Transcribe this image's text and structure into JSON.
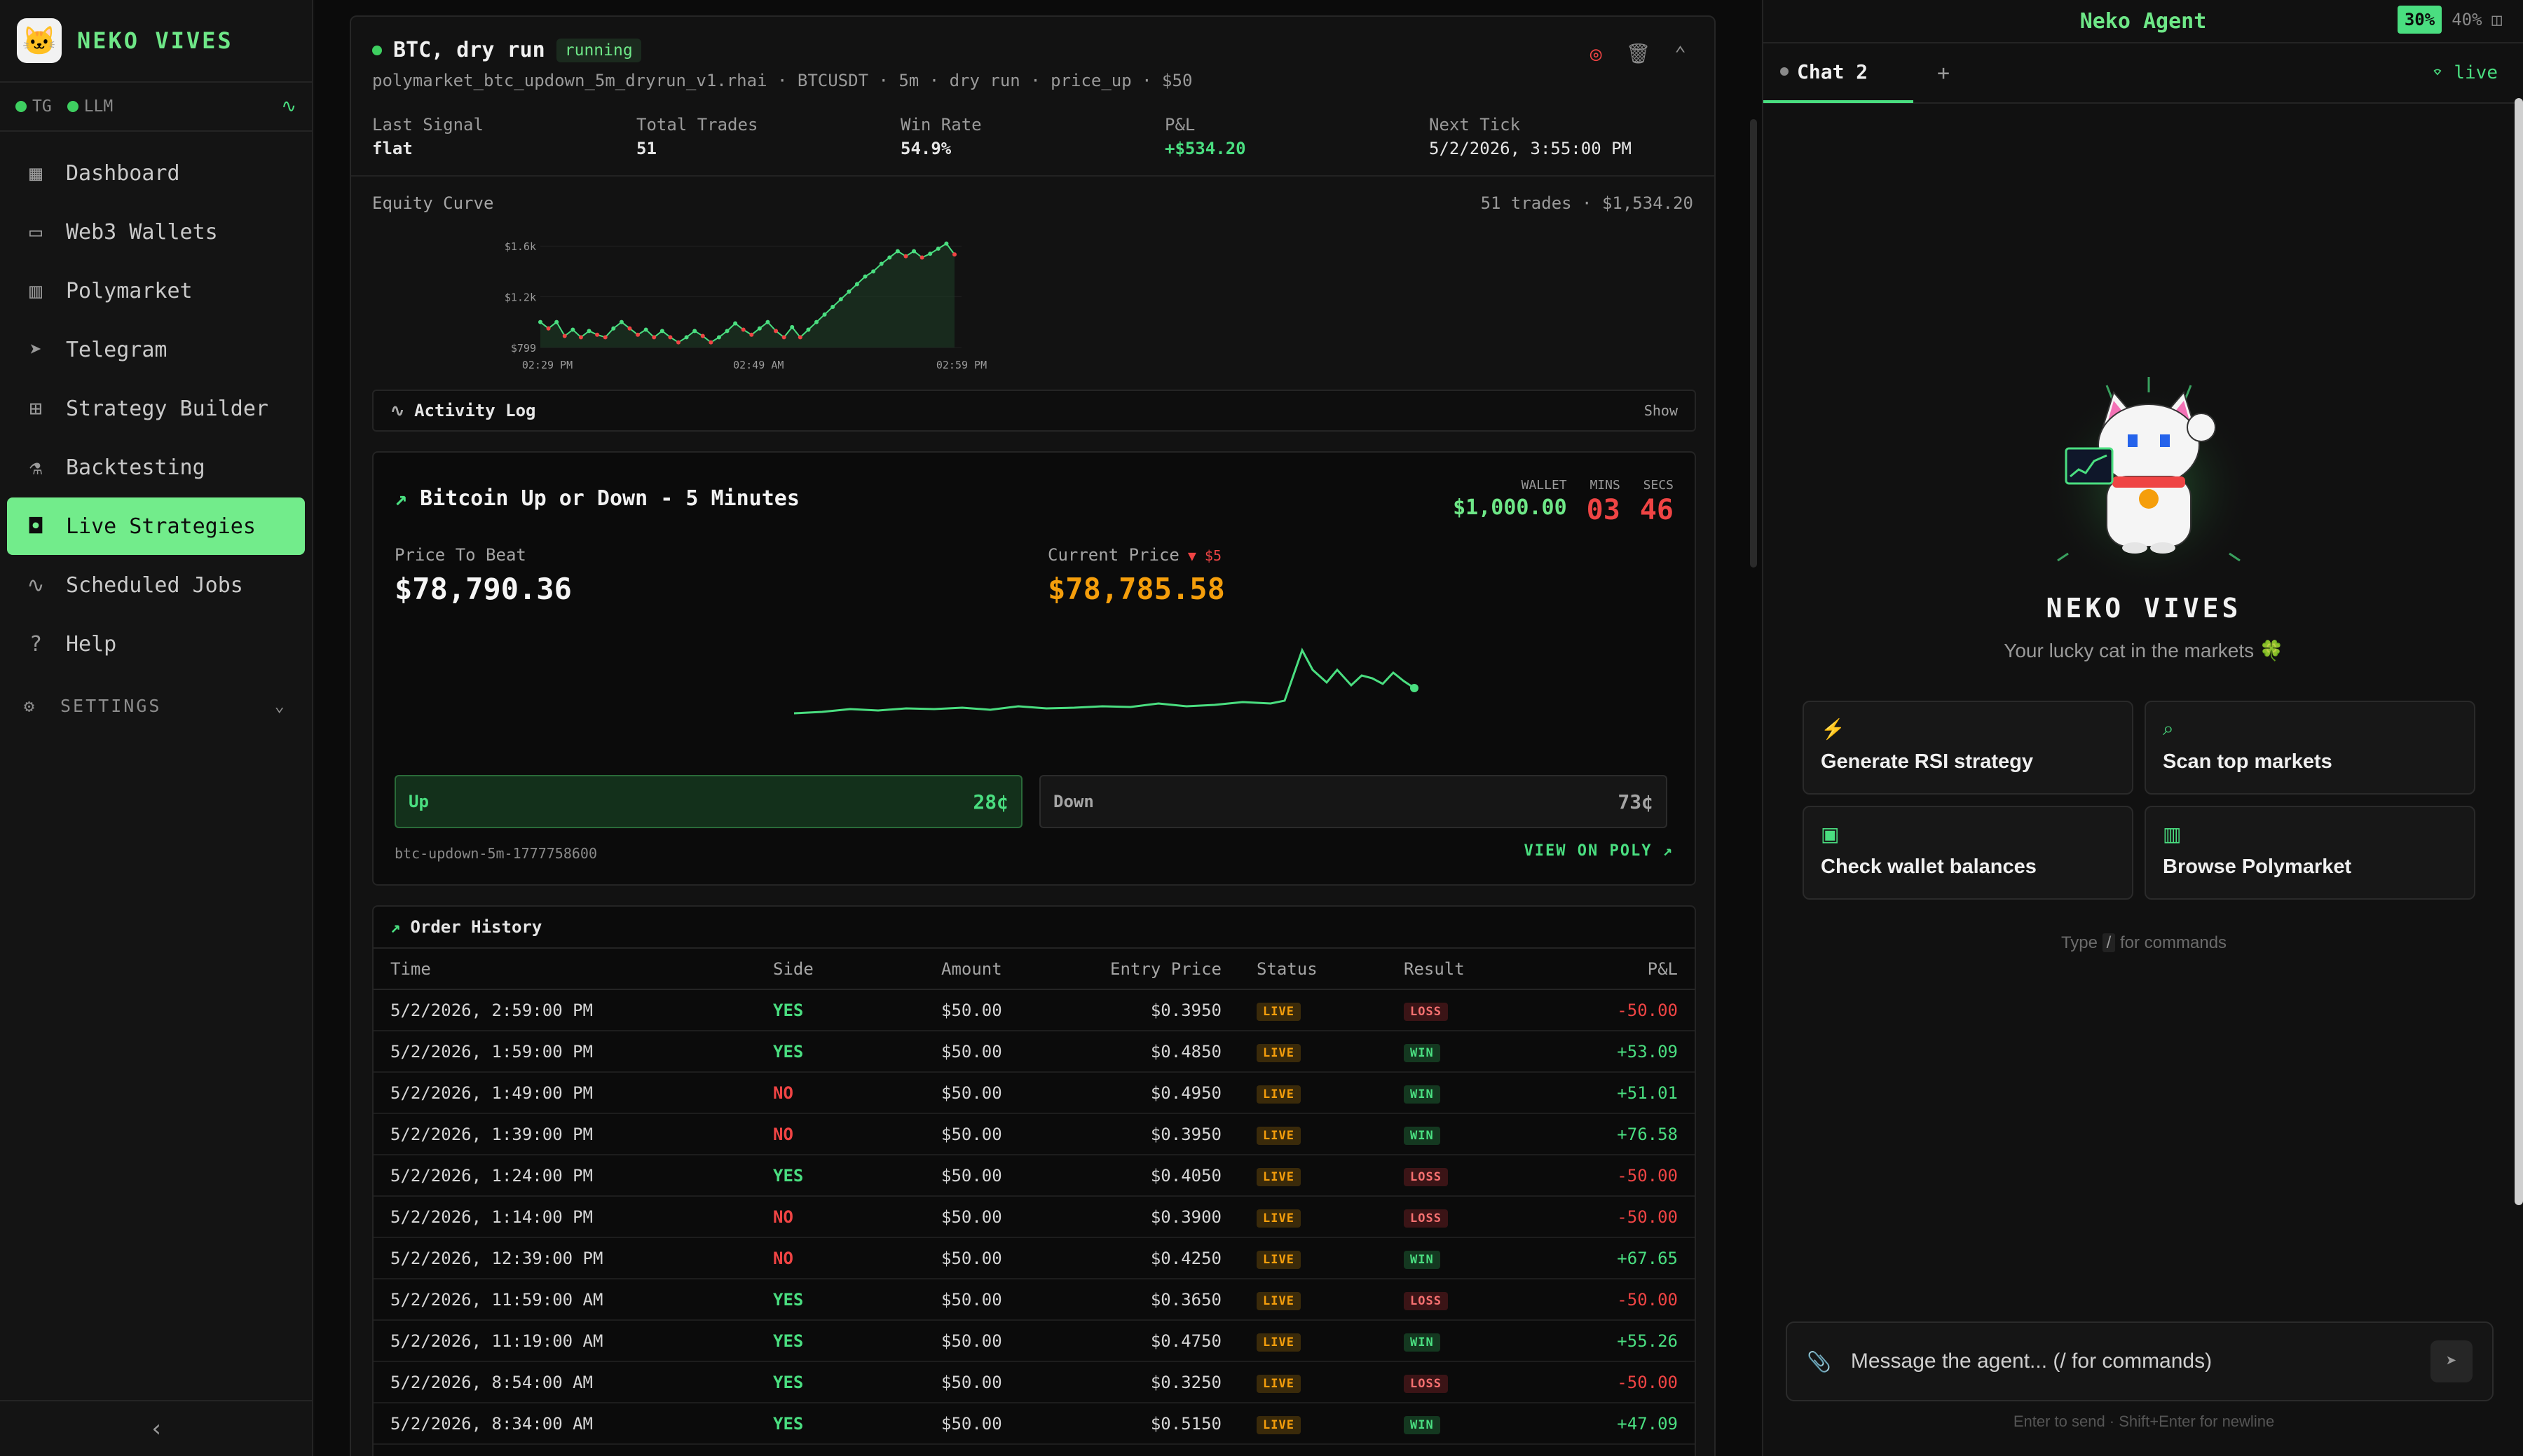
{
  "sidebar": {
    "brand": "NEKO VIVES",
    "status": {
      "tg": "TG",
      "llm": "LLM"
    },
    "items": [
      {
        "label": "Dashboard",
        "icon": "dashboard-icon"
      },
      {
        "label": "Web3 Wallets",
        "icon": "wallet-icon"
      },
      {
        "label": "Polymarket",
        "icon": "bar-chart-icon"
      },
      {
        "label": "Telegram",
        "icon": "send-icon"
      },
      {
        "label": "Strategy Builder",
        "icon": "blocks-icon"
      },
      {
        "label": "Backtesting",
        "icon": "flask-icon"
      },
      {
        "label": "Live Strategies",
        "icon": "bot-icon",
        "active": true
      },
      {
        "label": "Scheduled Jobs",
        "icon": "activity-icon"
      },
      {
        "label": "Help",
        "icon": "help-icon"
      }
    ],
    "settings_label": "SETTINGS"
  },
  "strategy": {
    "title": "BTC, dry run",
    "state": "running",
    "subtitle": "polymarket_btc_updown_5m_dryrun_v1.rhai · BTCUSDT · 5m · dry run · price_up · $50",
    "stats": [
      {
        "label": "Last Signal",
        "value": "flat"
      },
      {
        "label": "Total Trades",
        "value": "51"
      },
      {
        "label": "Win Rate",
        "value": "54.9%"
      },
      {
        "label": "P&L",
        "value": "+$534.20"
      },
      {
        "label": "Next Tick",
        "value": "5/2/2026, 3:55:00 PM"
      }
    ],
    "equity_label": "Equity Curve",
    "equity_meta": "51 trades · $1,534.20",
    "activity_label": "Activity Log",
    "activity_toggle": "Show"
  },
  "chart_data": {
    "type": "line",
    "title": "Equity Curve",
    "y_ticks": [
      "$1.6k",
      "$1.2k",
      "$799"
    ],
    "x_ticks": [
      "02:29 PM",
      "02:49 AM",
      "02:59 PM"
    ],
    "ylim": [
      799,
      1640
    ],
    "values": [
      1000,
      950,
      1000,
      890,
      940,
      880,
      930,
      900,
      880,
      950,
      1000,
      950,
      900,
      940,
      880,
      930,
      880,
      840,
      880,
      930,
      890,
      840,
      880,
      930,
      990,
      940,
      900,
      950,
      1000,
      930,
      880,
      960,
      880,
      940,
      1000,
      1060,
      1120,
      1180,
      1240,
      1300,
      1360,
      1400,
      1460,
      1510,
      1560,
      1520,
      1560,
      1510,
      1540,
      1580,
      1620,
      1534
    ]
  },
  "market": {
    "title": "Bitcoin Up or Down - 5 Minutes",
    "wallet_label": "WALLET",
    "wallet_value": "$1,000.00",
    "mins_label": "MINS",
    "mins_value": "03",
    "secs_label": "SECS",
    "secs_value": "46",
    "price_to_beat_label": "Price To Beat",
    "price_to_beat": "$78,790.36",
    "current_price_label": "Current Price",
    "current_delta": "▼ $5",
    "current_price": "$78,785.58",
    "up_label": "Up",
    "up_price": "28¢",
    "down_label": "Down",
    "down_price": "73¢",
    "slug": "btc-updown-5m-1777758600",
    "view_label": "VIEW ON POLY"
  },
  "orders": {
    "title": "Order History",
    "columns": [
      "Time",
      "Side",
      "Amount",
      "Entry Price",
      "Status",
      "Result",
      "P&L"
    ],
    "rows": [
      {
        "time": "5/2/2026, 2:59:00 PM",
        "side": "YES",
        "amount": "$50.00",
        "entry": "$0.3950",
        "status": "LIVE",
        "result": "LOSS",
        "pnl": "-50.00"
      },
      {
        "time": "5/2/2026, 1:59:00 PM",
        "side": "YES",
        "amount": "$50.00",
        "entry": "$0.4850",
        "status": "LIVE",
        "result": "WIN",
        "pnl": "+53.09"
      },
      {
        "time": "5/2/2026, 1:49:00 PM",
        "side": "NO",
        "amount": "$50.00",
        "entry": "$0.4950",
        "status": "LIVE",
        "result": "WIN",
        "pnl": "+51.01"
      },
      {
        "time": "5/2/2026, 1:39:00 PM",
        "side": "NO",
        "amount": "$50.00",
        "entry": "$0.3950",
        "status": "LIVE",
        "result": "WIN",
        "pnl": "+76.58"
      },
      {
        "time": "5/2/2026, 1:24:00 PM",
        "side": "YES",
        "amount": "$50.00",
        "entry": "$0.4050",
        "status": "LIVE",
        "result": "LOSS",
        "pnl": "-50.00"
      },
      {
        "time": "5/2/2026, 1:14:00 PM",
        "side": "NO",
        "amount": "$50.00",
        "entry": "$0.3900",
        "status": "LIVE",
        "result": "LOSS",
        "pnl": "-50.00"
      },
      {
        "time": "5/2/2026, 12:39:00 PM",
        "side": "NO",
        "amount": "$50.00",
        "entry": "$0.4250",
        "status": "LIVE",
        "result": "WIN",
        "pnl": "+67.65"
      },
      {
        "time": "5/2/2026, 11:59:00 AM",
        "side": "YES",
        "amount": "$50.00",
        "entry": "$0.3650",
        "status": "LIVE",
        "result": "LOSS",
        "pnl": "-50.00"
      },
      {
        "time": "5/2/2026, 11:19:00 AM",
        "side": "YES",
        "amount": "$50.00",
        "entry": "$0.4750",
        "status": "LIVE",
        "result": "WIN",
        "pnl": "+55.26"
      },
      {
        "time": "5/2/2026, 8:54:00 AM",
        "side": "YES",
        "amount": "$50.00",
        "entry": "$0.3250",
        "status": "LIVE",
        "result": "LOSS",
        "pnl": "-50.00"
      },
      {
        "time": "5/2/2026, 8:34:00 AM",
        "side": "YES",
        "amount": "$50.00",
        "entry": "$0.5150",
        "status": "LIVE",
        "result": "WIN",
        "pnl": "+47.09"
      }
    ]
  },
  "agent": {
    "title": "Neko Agent",
    "size_30": "30%",
    "size_40": "40%",
    "tab_label": "Chat 2",
    "plus": "+",
    "live_label": "live",
    "name": "NEKO VIVES",
    "tagline": "Your lucky cat in the markets 🍀",
    "quick_actions": [
      {
        "label": "Generate RSI strategy",
        "icon": "⚡"
      },
      {
        "label": "Scan top markets",
        "icon": "⌕"
      },
      {
        "label": "Check wallet balances",
        "icon": "▣"
      },
      {
        "label": "Browse Polymarket",
        "icon": "▥"
      }
    ],
    "hint_pre": "Type",
    "hint_key": "/",
    "hint_post": "for commands",
    "input_placeholder": "Message the agent... (/ for commands)",
    "footnote": "Enter to send · Shift+Enter for newline"
  },
  "colors": {
    "accent": "#72ec8b",
    "loss": "#ef4444",
    "warn": "#f59e0b"
  }
}
